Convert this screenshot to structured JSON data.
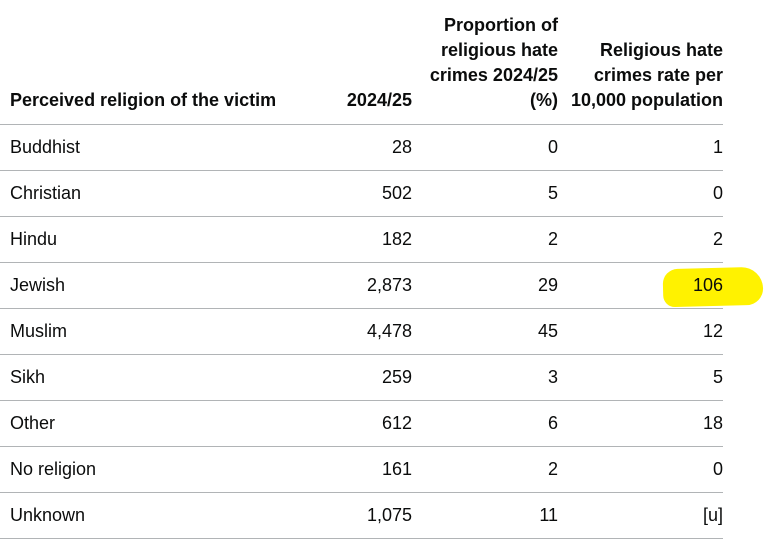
{
  "table": {
    "headers": {
      "religion": "Perceived religion of the victim",
      "count": "2024/25",
      "proportion": "Proportion of religious hate crimes 2024/25 (%)",
      "rate": "Religious hate crimes rate per 10,000 population"
    },
    "rows": [
      {
        "religion": "Buddhist",
        "count": "28",
        "proportion": "0",
        "rate": "1"
      },
      {
        "religion": "Christian",
        "count": "502",
        "proportion": "5",
        "rate": "0"
      },
      {
        "religion": "Hindu",
        "count": "182",
        "proportion": "2",
        "rate": "2"
      },
      {
        "religion": "Jewish",
        "count": "2,873",
        "proportion": "29",
        "rate": "106"
      },
      {
        "religion": "Muslim",
        "count": "4,478",
        "proportion": "45",
        "rate": "12"
      },
      {
        "religion": "Sikh",
        "count": "259",
        "proportion": "3",
        "rate": "5"
      },
      {
        "religion": "Other",
        "count": "612",
        "proportion": "6",
        "rate": "18"
      },
      {
        "religion": "No religion",
        "count": "161",
        "proportion": "2",
        "rate": "0"
      },
      {
        "religion": "Unknown",
        "count": "1,075",
        "proportion": "11",
        "rate": "[u]"
      }
    ]
  },
  "colors": {
    "highlight": "#fff200",
    "border": "#b1b4b6",
    "text": "#0b0c0c"
  }
}
